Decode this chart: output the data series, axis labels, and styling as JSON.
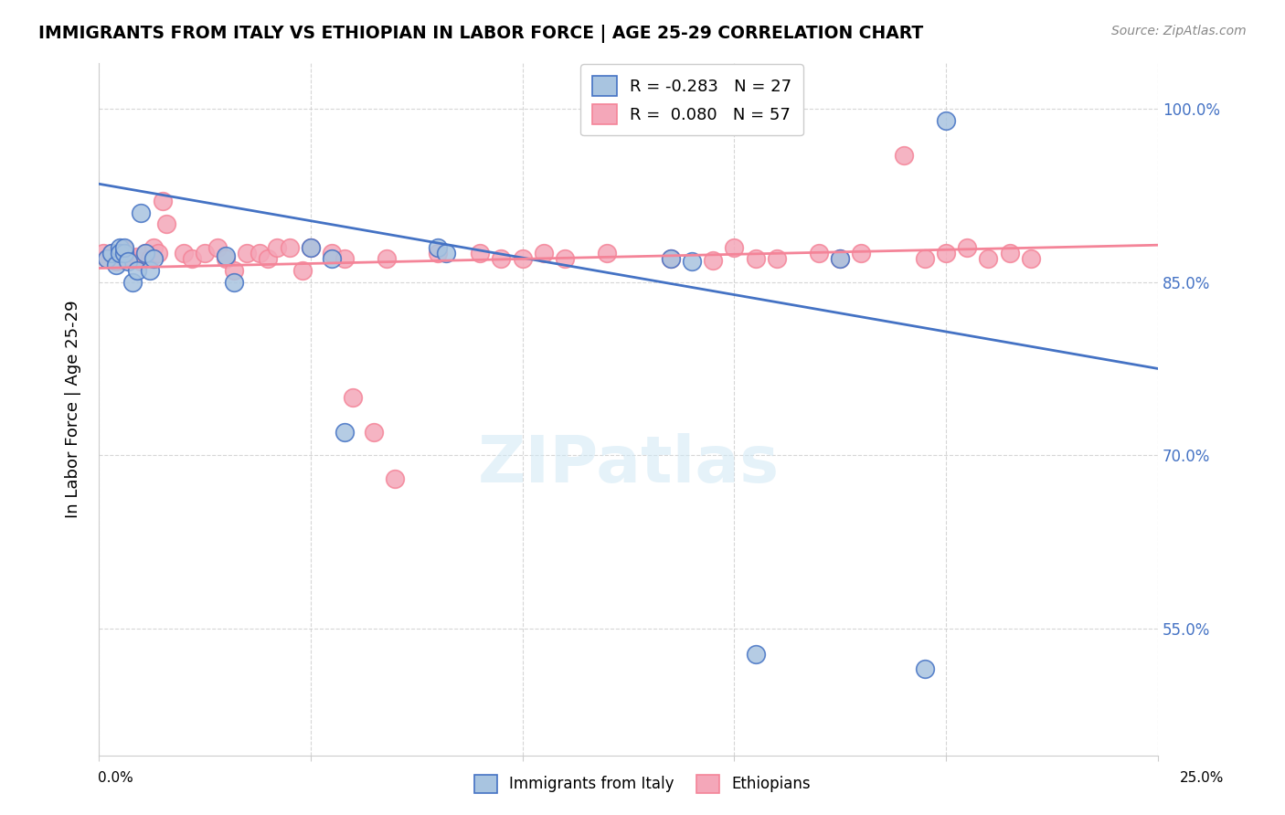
{
  "title": "IMMIGRANTS FROM ITALY VS ETHIOPIAN IN LABOR FORCE | AGE 25-29 CORRELATION CHART",
  "source": "Source: ZipAtlas.com",
  "ylabel": "In Labor Force | Age 25-29",
  "xlim": [
    0.0,
    0.25
  ],
  "ylim": [
    0.44,
    1.04
  ],
  "legend_italy_R": "-0.283",
  "legend_italy_N": "27",
  "legend_ethiopian_R": "0.080",
  "legend_ethiopian_N": "57",
  "color_italy": "#a8c4e0",
  "color_ethiopian": "#f4a7b9",
  "color_italy_line": "#4472c4",
  "color_ethiopian_line": "#f48498",
  "italy_line_y0": 0.935,
  "italy_line_y1": 0.775,
  "eth_line_y0": 0.862,
  "eth_line_y1": 0.882,
  "italy_x": [
    0.002,
    0.003,
    0.004,
    0.005,
    0.005,
    0.006,
    0.006,
    0.007,
    0.008,
    0.009,
    0.01,
    0.011,
    0.012,
    0.013,
    0.03,
    0.032,
    0.05,
    0.055,
    0.058,
    0.08,
    0.082,
    0.135,
    0.14,
    0.155,
    0.175,
    0.195,
    0.2
  ],
  "italy_y": [
    0.87,
    0.875,
    0.865,
    0.88,
    0.875,
    0.875,
    0.88,
    0.868,
    0.85,
    0.86,
    0.91,
    0.875,
    0.86,
    0.87,
    0.873,
    0.85,
    0.88,
    0.87,
    0.72,
    0.88,
    0.875,
    0.87,
    0.868,
    0.528,
    0.87,
    0.515,
    0.99
  ],
  "ethiopian_x": [
    0.001,
    0.002,
    0.003,
    0.004,
    0.005,
    0.006,
    0.007,
    0.008,
    0.009,
    0.01,
    0.011,
    0.012,
    0.013,
    0.014,
    0.015,
    0.016,
    0.02,
    0.022,
    0.025,
    0.028,
    0.03,
    0.032,
    0.035,
    0.038,
    0.04,
    0.042,
    0.045,
    0.048,
    0.05,
    0.055,
    0.058,
    0.06,
    0.065,
    0.068,
    0.07,
    0.08,
    0.09,
    0.095,
    0.1,
    0.105,
    0.11,
    0.12,
    0.135,
    0.145,
    0.15,
    0.155,
    0.16,
    0.17,
    0.175,
    0.18,
    0.19,
    0.195,
    0.2,
    0.205,
    0.21,
    0.215,
    0.22
  ],
  "ethiopian_y": [
    0.875,
    0.87,
    0.875,
    0.868,
    0.875,
    0.878,
    0.87,
    0.87,
    0.872,
    0.868,
    0.875,
    0.87,
    0.88,
    0.875,
    0.92,
    0.9,
    0.875,
    0.87,
    0.875,
    0.88,
    0.87,
    0.86,
    0.875,
    0.875,
    0.87,
    0.88,
    0.88,
    0.86,
    0.88,
    0.875,
    0.87,
    0.75,
    0.72,
    0.87,
    0.68,
    0.875,
    0.875,
    0.87,
    0.87,
    0.875,
    0.87,
    0.875,
    0.87,
    0.869,
    0.88,
    0.87,
    0.87,
    0.875,
    0.87,
    0.875,
    0.96,
    0.87,
    0.875,
    0.88,
    0.87,
    0.875,
    0.87
  ]
}
